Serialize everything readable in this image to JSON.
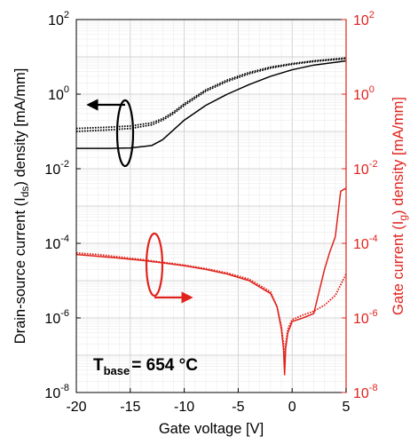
{
  "chart_data": {
    "type": "line",
    "xlabel": "Gate voltage [V]",
    "ylabel_left": {
      "pre": "Drain-source current (I",
      "sub": "ds",
      "post": ") density [mA/mm]"
    },
    "ylabel_right": {
      "pre": "Gate current (I",
      "sub": "g",
      "post": ") density [mA/mm]"
    },
    "xlim": [
      -20,
      5
    ],
    "ylim_left": [
      1e-08,
      100
    ],
    "ylim_right": [
      1e-08,
      100
    ],
    "yscale": "log",
    "grid": true,
    "x_ticks": [
      "-20",
      "-15",
      "-10",
      "-5",
      "0",
      "5"
    ],
    "y_ticks_left": [
      {
        "base": "10",
        "exp": "-8"
      },
      {
        "base": "10",
        "exp": "-6"
      },
      {
        "base": "10",
        "exp": "-4"
      },
      {
        "base": "10",
        "exp": "-2"
      },
      {
        "base": "10",
        "exp": "0"
      },
      {
        "base": "10",
        "exp": "2"
      }
    ],
    "y_ticks_right": [
      {
        "base": "10",
        "exp": "-8"
      },
      {
        "base": "10",
        "exp": "-6"
      },
      {
        "base": "10",
        "exp": "-4"
      },
      {
        "base": "10",
        "exp": "-2"
      },
      {
        "base": "10",
        "exp": "0"
      },
      {
        "base": "10",
        "exp": "2"
      }
    ],
    "annotation": {
      "main": "T",
      "sub": "base",
      "rest": "= 654 °C"
    },
    "colors": {
      "drain": "#000000",
      "gate": "#e0231c"
    },
    "series": [
      {
        "axis": "left",
        "style": "solid",
        "x": [
          -20,
          -17,
          -15,
          -13,
          -12,
          -11,
          -10,
          -8,
          -6,
          -4,
          -2,
          0,
          2,
          5
        ],
        "y": [
          0.035,
          0.035,
          0.036,
          0.042,
          0.06,
          0.11,
          0.2,
          0.5,
          1.0,
          1.8,
          3.0,
          4.5,
          6.0,
          7.8
        ]
      },
      {
        "axis": "left",
        "style": "dotted",
        "x": [
          -20,
          -17,
          -15,
          -13,
          -12,
          -11,
          -10,
          -8,
          -6,
          -4,
          -2,
          0,
          2,
          5
        ],
        "y": [
          0.1,
          0.11,
          0.12,
          0.15,
          0.2,
          0.3,
          0.5,
          1.2,
          2.2,
          3.5,
          5.0,
          6.3,
          7.5,
          9.0
        ]
      },
      {
        "axis": "left",
        "style": "dotted",
        "x": [
          -20,
          -17,
          -15,
          -13,
          -12,
          -11,
          -10,
          -8,
          -6,
          -4,
          -2,
          0,
          2,
          5
        ],
        "y": [
          0.12,
          0.13,
          0.14,
          0.17,
          0.22,
          0.33,
          0.55,
          1.3,
          2.4,
          3.8,
          5.3,
          6.6,
          7.8,
          9.3
        ]
      },
      {
        "axis": "right",
        "style": "solid",
        "x": [
          -20,
          -18,
          -16,
          -14,
          -12,
          -10,
          -8,
          -6,
          -4,
          -2,
          -1.4,
          -1,
          -0.8,
          -0.7,
          -0.6,
          -0.4,
          0,
          1,
          2,
          3,
          3.5,
          4,
          4.5,
          5
        ],
        "y": [
          5e-05,
          4.5e-05,
          4e-05,
          3.5e-05,
          3e-05,
          2.5e-05,
          2e-05,
          1.5e-05,
          1e-05,
          4.5e-06,
          2e-06,
          5e-07,
          1.5e-07,
          3e-08,
          1.5e-07,
          4e-07,
          8e-07,
          1e-06,
          1.3e-06,
          2e-05,
          6e-05,
          0.00015,
          0.0025,
          0.003
        ]
      },
      {
        "axis": "right",
        "style": "dotted",
        "x": [
          -20,
          -18,
          -16,
          -14,
          -12,
          -10,
          -8,
          -6,
          -4,
          -2,
          -1.4,
          -1,
          -0.8,
          -0.7,
          -0.6,
          -0.4,
          0,
          1,
          2,
          3,
          4,
          5
        ],
        "y": [
          5.5e-05,
          5e-05,
          4.3e-05,
          3.7e-05,
          3.1e-05,
          2.6e-05,
          2.1e-05,
          1.6e-05,
          1.1e-05,
          5e-06,
          2e-06,
          6e-07,
          2e-07,
          5e-08,
          2e-07,
          5e-07,
          9e-07,
          1.2e-06,
          1.5e-06,
          2.2e-06,
          4e-06,
          1.5e-05
        ]
      }
    ]
  }
}
